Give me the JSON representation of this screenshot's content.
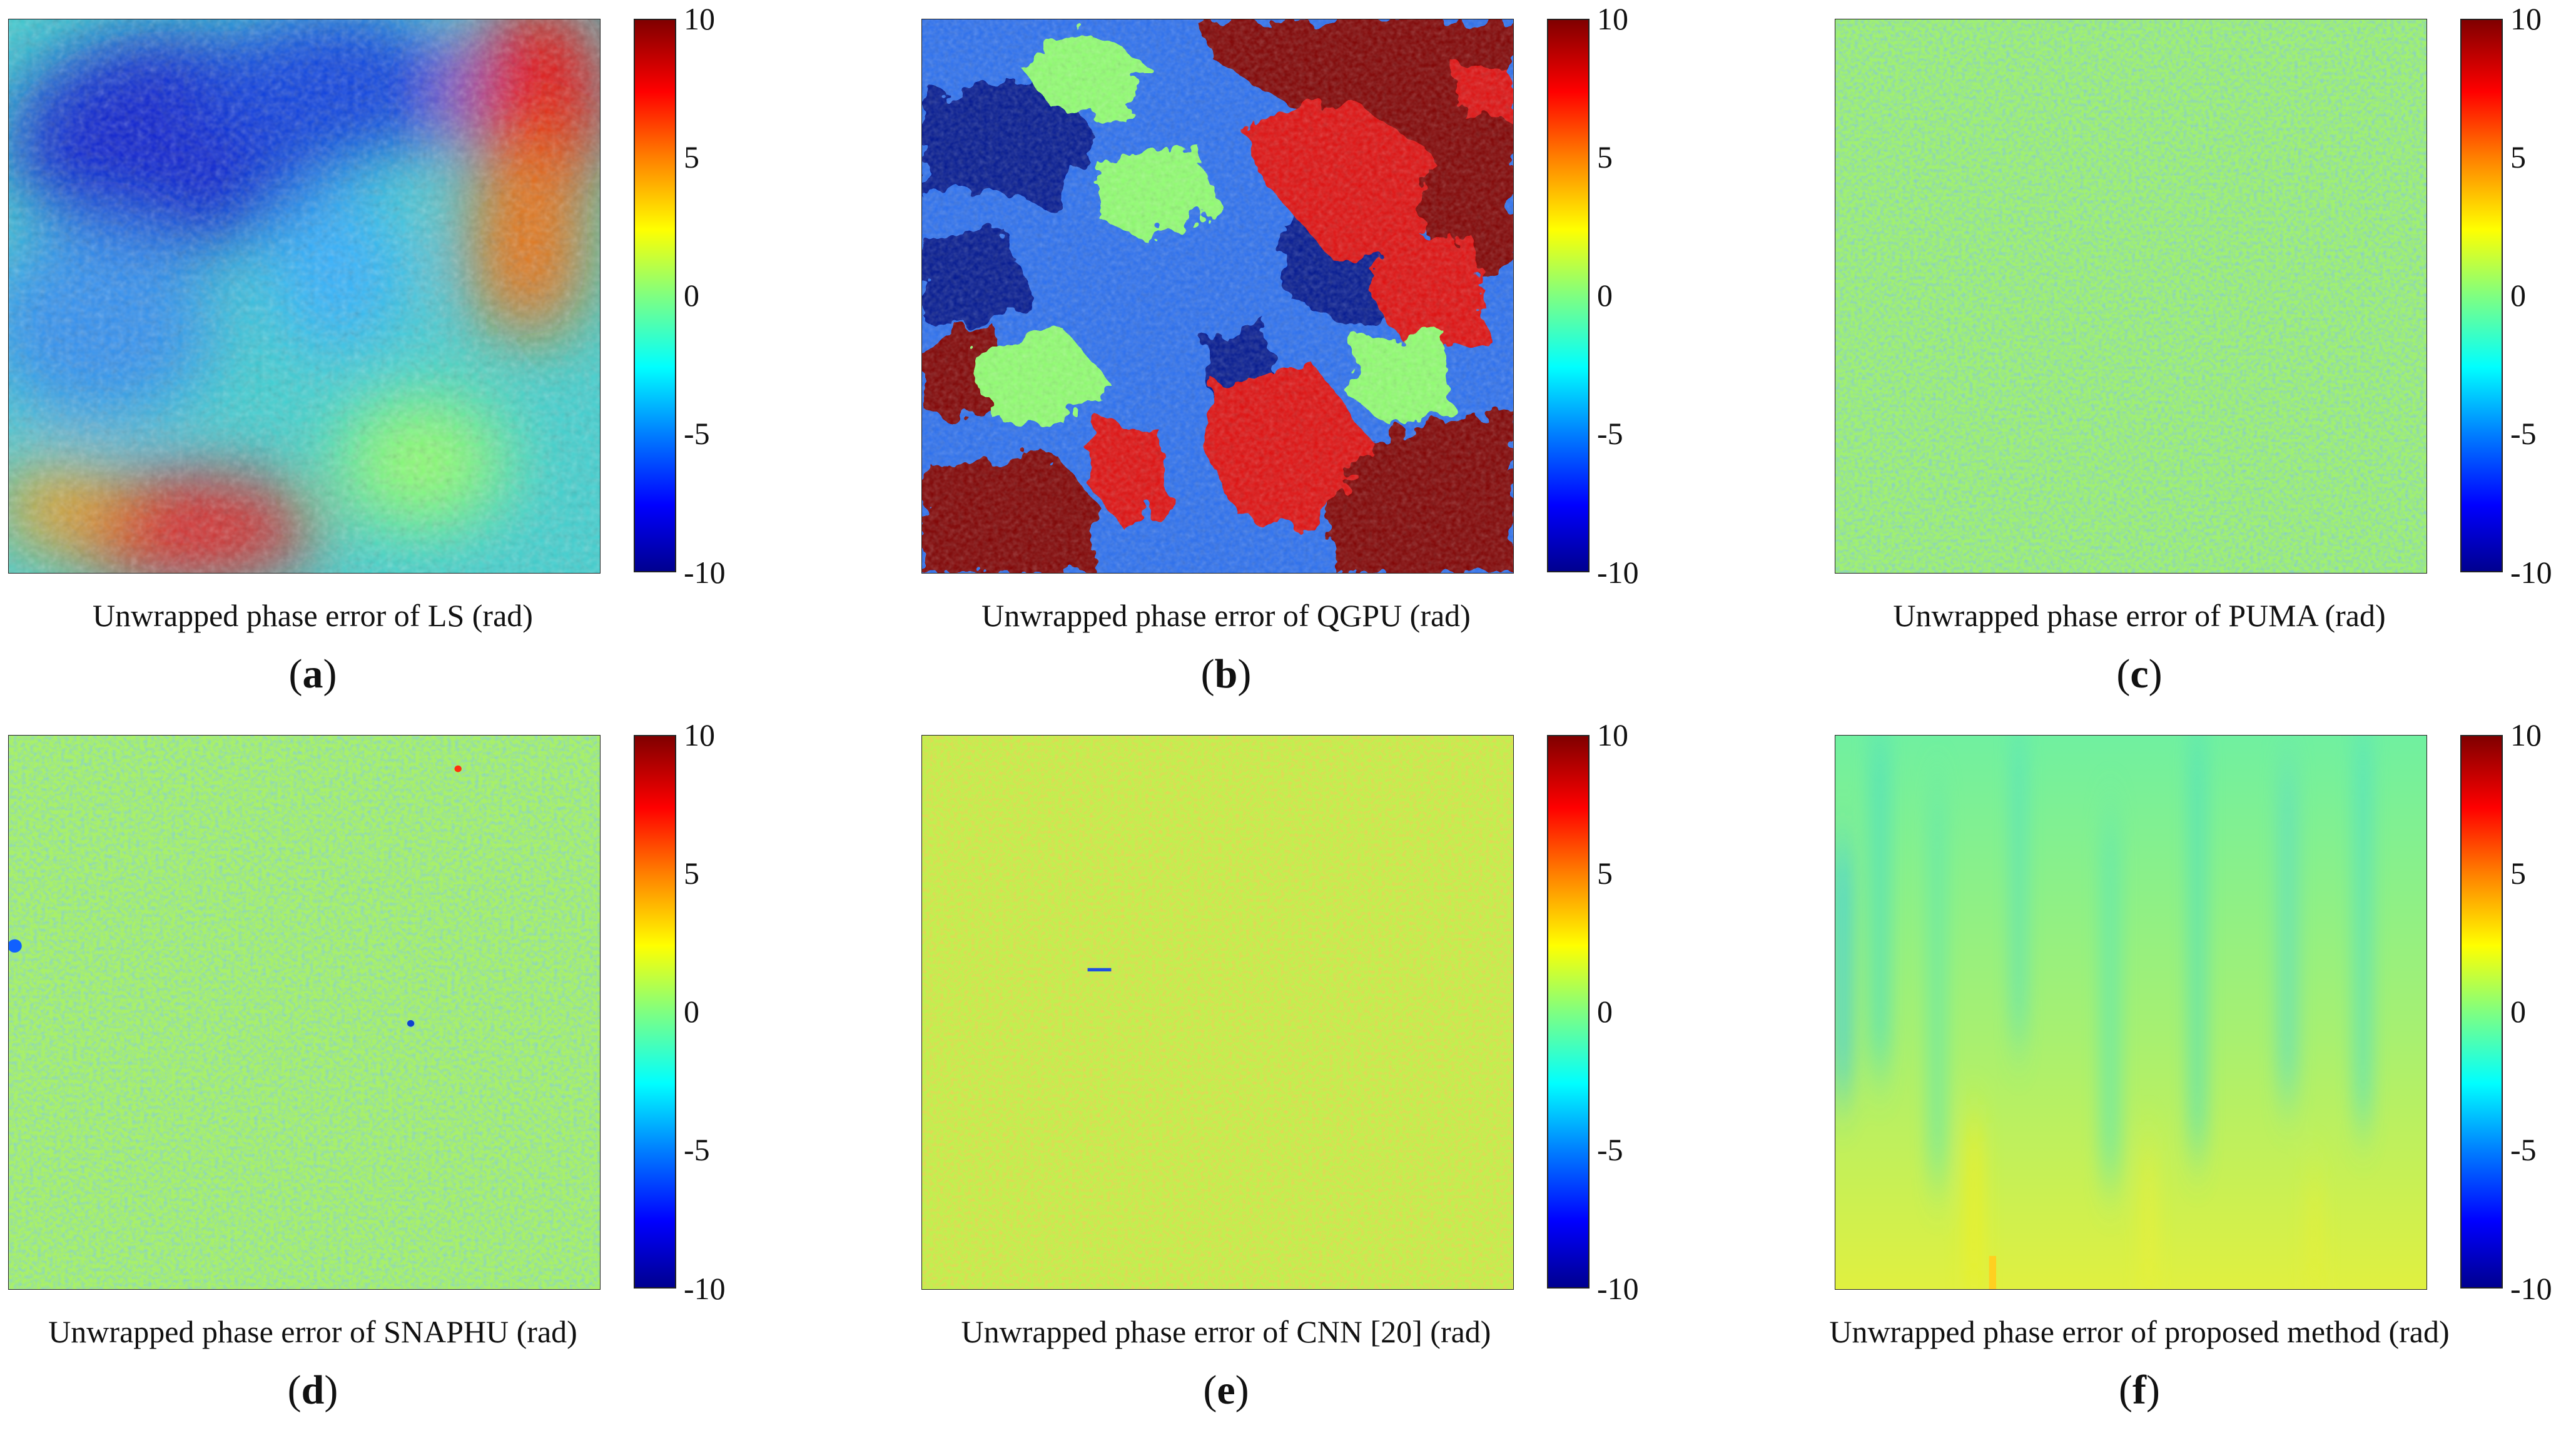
{
  "chart_data": [
    {
      "type": "heatmap",
      "label": "a",
      "method": "LS",
      "caption": "Unwrapped phase error of LS (rad)",
      "pattern": "smooth-blobs",
      "colorbar": {
        "min": -10,
        "max": 10,
        "ticks": [
          "10",
          "5",
          "0",
          "-5",
          "-10"
        ]
      }
    },
    {
      "type": "heatmap",
      "label": "b",
      "method": "QGPU",
      "caption": "Unwrapped phase error of QGPU (rad)",
      "pattern": "phase-jumps",
      "colorbar": {
        "min": -10,
        "max": 10,
        "ticks": [
          "10",
          "5",
          "0",
          "-5",
          "-10"
        ]
      }
    },
    {
      "type": "heatmap",
      "label": "c",
      "method": "PUMA",
      "caption": "Unwrapped phase error of PUMA (rad)",
      "pattern": "fine-noise",
      "colorbar": {
        "min": -10,
        "max": 10,
        "ticks": [
          "10",
          "5",
          "0",
          "-5",
          "-10"
        ]
      }
    },
    {
      "type": "heatmap",
      "label": "d",
      "method": "SNAPHU",
      "caption": "Unwrapped phase error of SNAPHU (rad)",
      "pattern": "fine-noise",
      "colorbar": {
        "min": -10,
        "max": 10,
        "ticks": [
          "10",
          "5",
          "0",
          "-5",
          "-10"
        ]
      }
    },
    {
      "type": "heatmap",
      "label": "e",
      "method": "CNN [20]",
      "caption": "Unwrapped phase error of CNN [20] (rad)",
      "pattern": "fine-noise-warm",
      "colorbar": {
        "min": -10,
        "max": 10,
        "ticks": [
          "10",
          "5",
          "0",
          "-5",
          "-10"
        ]
      }
    },
    {
      "type": "heatmap",
      "label": "f",
      "method": "proposed method",
      "caption": "Unwrapped phase error of proposed method (rad)",
      "pattern": "smooth-streaks",
      "colorbar": {
        "min": -10,
        "max": 10,
        "ticks": [
          "10",
          "5",
          "0",
          "-5",
          "-10"
        ]
      }
    }
  ]
}
